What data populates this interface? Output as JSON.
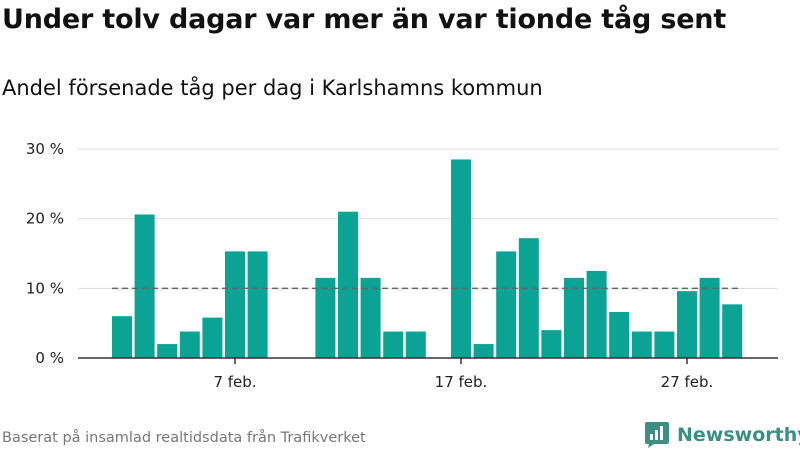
{
  "title": "Under tolv dagar var mer än var tionde tåg sent",
  "subtitle": "Andel försenade tåg per dag i Karlshamns kommun",
  "source": "Baserat på insamlad realtidsdata från Trafikverket",
  "logo": {
    "text": "Newsworthy",
    "icon": "newsworthy-chart-icon"
  },
  "colors": {
    "bar": "#0aa394",
    "grid": "#dddddd",
    "axis": "#333333",
    "reference": "#666666",
    "logo": "#3b8f84"
  },
  "chart_data": {
    "type": "bar",
    "x_unit": "day",
    "x": [
      "2 feb.",
      "3 feb.",
      "4 feb.",
      "5 feb.",
      "6 feb.",
      "7 feb.",
      "8 feb.",
      "9 feb.",
      "10 feb.",
      "11 feb.",
      "12 feb.",
      "13 feb.",
      "14 feb.",
      "15 feb.",
      "16 feb.",
      "17 feb.",
      "18 feb.",
      "19 feb.",
      "20 feb.",
      "21 feb.",
      "22 feb.",
      "23 feb.",
      "24 feb.",
      "25 feb.",
      "26 feb.",
      "27 feb.",
      "28 feb.",
      "29 feb."
    ],
    "values": [
      6,
      20.6,
      2,
      3.8,
      5.8,
      15.3,
      15.3,
      null,
      null,
      11.5,
      21,
      11.5,
      3.8,
      3.8,
      null,
      28.5,
      2,
      15.3,
      17.2,
      4,
      11.5,
      12.5,
      6.6,
      3.8,
      3.8,
      9.6,
      11.5,
      7.7
    ],
    "reference_line": 10,
    "ylim": [
      0,
      30
    ],
    "y_ticks": [
      0,
      10,
      20,
      30
    ],
    "y_tick_labels": [
      "0 %",
      "10 %",
      "20 %",
      "30 %"
    ],
    "x_tick_labels": [
      {
        "x": "7 feb.",
        "label": "7 feb."
      },
      {
        "x": "17 feb.",
        "label": "17 feb."
      },
      {
        "x": "27 feb.",
        "label": "27 feb."
      }
    ],
    "grid": true,
    "legend": "none"
  }
}
